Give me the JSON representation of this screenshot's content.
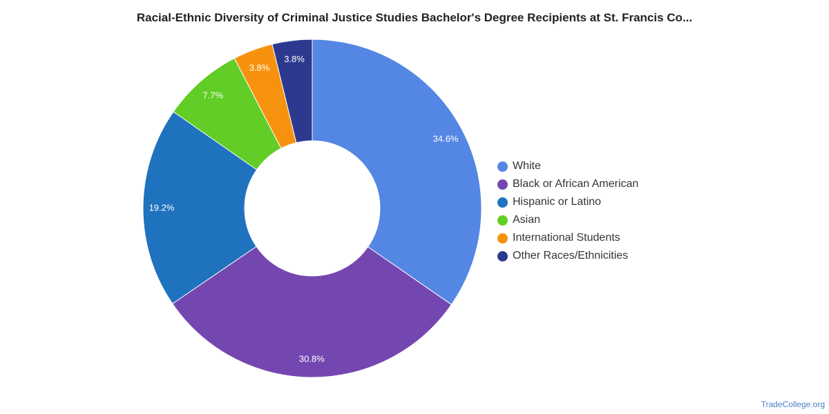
{
  "chart_data": {
    "type": "pie",
    "title": "Racial-Ethnic Diversity of Criminal Justice Studies Bachelor's Degree Recipients at St. Francis Co...",
    "legend_position": "right",
    "slices": [
      {
        "label": "White",
        "value": 34.6,
        "display": "34.6%",
        "color": "#5486e3"
      },
      {
        "label": "Black or African American",
        "value": 30.8,
        "display": "30.8%",
        "color": "#7447b0"
      },
      {
        "label": "Hispanic or Latino",
        "value": 19.2,
        "display": "19.2%",
        "color": "#1f72bd"
      },
      {
        "label": "Asian",
        "value": 7.7,
        "display": "7.7%",
        "color": "#62cd26"
      },
      {
        "label": "International Students",
        "value": 3.8,
        "display": "3.8%",
        "color": "#f7920e"
      },
      {
        "label": "Other Races/Ethnicities",
        "value": 3.8,
        "display": "3.8%",
        "color": "#2c398f"
      }
    ]
  },
  "footer": {
    "source": "TradeCollege.org"
  }
}
